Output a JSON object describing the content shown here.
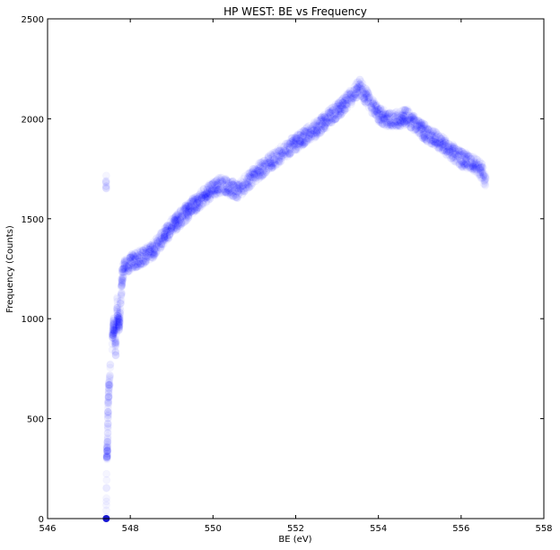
{
  "chart_data": {
    "type": "scatter",
    "title": "HP WEST: BE vs Frequency",
    "xlabel": "BE (eV)",
    "ylabel": "Frequency (Counts)",
    "xlim": [
      546,
      558
    ],
    "ylim": [
      0,
      2500
    ],
    "x_ticks": [
      546,
      548,
      550,
      552,
      554,
      556,
      558
    ],
    "y_ticks": [
      0,
      500,
      1000,
      1500,
      2000,
      2500
    ],
    "grid": false,
    "legend": "none",
    "series": [
      {
        "marker": "circle",
        "color": "#0000ff",
        "alpha": 0.04,
        "points": [
          [
            547.42,
            0
          ],
          [
            547.43,
            330
          ],
          [
            547.45,
            350
          ],
          [
            547.47,
            620
          ],
          [
            547.5,
            690
          ],
          [
            547.58,
            930
          ],
          [
            547.6,
            970
          ],
          [
            547.65,
            840
          ],
          [
            547.68,
            1080
          ],
          [
            547.72,
            960
          ],
          [
            547.75,
            1020
          ],
          [
            547.8,
            1200
          ],
          [
            547.85,
            1260
          ],
          [
            548.0,
            1280
          ],
          [
            548.5,
            1330
          ],
          [
            549.0,
            1460
          ],
          [
            549.5,
            1560
          ],
          [
            550.0,
            1650
          ],
          [
            550.2,
            1670
          ],
          [
            550.6,
            1640
          ],
          [
            551.0,
            1720
          ],
          [
            551.5,
            1800
          ],
          [
            552.0,
            1880
          ],
          [
            552.5,
            1950
          ],
          [
            553.0,
            2040
          ],
          [
            553.3,
            2100
          ],
          [
            553.55,
            2160
          ],
          [
            553.8,
            2080
          ],
          [
            554.0,
            2020
          ],
          [
            554.3,
            1990
          ],
          [
            554.7,
            2010
          ],
          [
            555.0,
            1950
          ],
          [
            555.5,
            1880
          ],
          [
            556.0,
            1800
          ],
          [
            556.3,
            1780
          ],
          [
            556.5,
            1740
          ],
          [
            556.6,
            1680
          ]
        ]
      }
    ]
  }
}
